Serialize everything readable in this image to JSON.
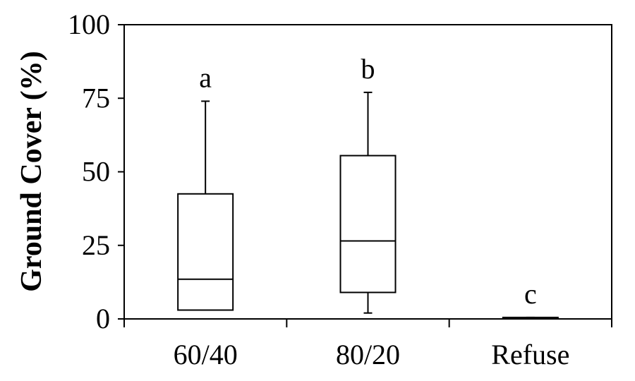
{
  "chart_data": {
    "type": "box",
    "ylabel": "Ground Cover (%)",
    "xlabel": "",
    "ylim": [
      0,
      100
    ],
    "yticks": [
      0,
      25,
      50,
      75,
      100
    ],
    "categories": [
      "60/40",
      "80/20",
      "Refuse"
    ],
    "boxes": [
      {
        "category": "60/40",
        "whisker_low": 3,
        "q1": 3,
        "median": 13.5,
        "q3": 42.5,
        "whisker_high": 74,
        "significance": "a"
      },
      {
        "category": "80/20",
        "whisker_low": 2,
        "q1": 9,
        "median": 26.5,
        "q3": 55.5,
        "whisker_high": 77,
        "significance": "b"
      },
      {
        "category": "Refuse",
        "whisker_low": 0,
        "q1": 0,
        "median": 0,
        "q3": 0.5,
        "whisker_high": 0.5,
        "significance": "c"
      }
    ],
    "grid": false,
    "legend": "none"
  }
}
